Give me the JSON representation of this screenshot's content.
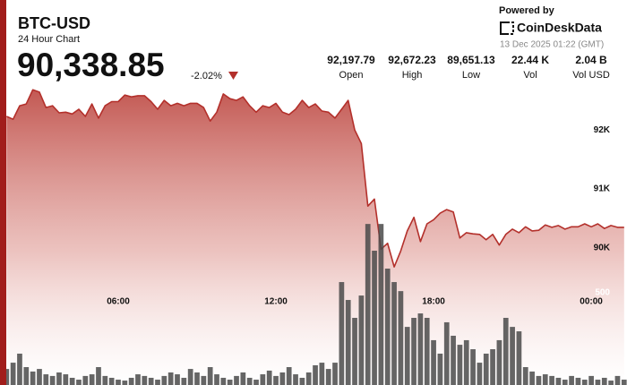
{
  "header": {
    "title": "BTC-USD",
    "subtitle": "24 Hour Chart",
    "price": "90,338.85",
    "change": "-2.02%"
  },
  "stats": [
    {
      "value": "92,197.79",
      "label": "Open"
    },
    {
      "value": "92,672.23",
      "label": "High"
    },
    {
      "value": "89,651.13",
      "label": "Low"
    },
    {
      "value": "22.44 K",
      "label": "Vol"
    },
    {
      "value": "2.04 B",
      "label": "Vol USD"
    }
  ],
  "branding": {
    "powered_by": "Powered by",
    "brand": "CoinDeskData",
    "timestamp": "13 Dec 2025 01:22 (GMT)"
  },
  "chart_data": {
    "type": "line",
    "x": [
      1.75,
      2,
      2.25,
      2.5,
      2.75,
      3,
      3.25,
      3.5,
      3.75,
      4,
      4.25,
      4.5,
      4.75,
      5,
      5.25,
      5.5,
      5.75,
      6,
      6.25,
      6.5,
      6.75,
      7,
      7.25,
      7.5,
      7.75,
      8,
      8.25,
      8.5,
      8.75,
      9,
      9.25,
      9.5,
      9.75,
      10,
      10.25,
      10.5,
      10.75,
      11,
      11.25,
      11.5,
      11.75,
      12,
      12.25,
      12.5,
      12.75,
      13,
      13.25,
      13.5,
      13.75,
      14,
      14.25,
      14.5,
      14.75,
      15,
      15.25,
      15.5,
      15.75,
      16,
      16.25,
      16.5,
      16.75,
      17,
      17.25,
      17.5,
      17.75,
      18,
      18.25,
      18.5,
      18.75,
      19,
      19.25,
      19.5,
      19.75,
      20,
      20.25,
      20.5,
      20.75,
      21,
      21.25,
      21.5,
      21.75,
      22,
      22.25,
      22.5,
      22.75,
      23,
      23.25,
      23.5,
      23.75,
      24,
      24.25,
      24.5,
      24.75,
      25,
      25.25
    ],
    "series": [
      {
        "color": "#b3302b",
        "values": [
          92230,
          92180,
          92410,
          92440,
          92680,
          92640,
          92380,
          92410,
          92290,
          92300,
          92270,
          92350,
          92230,
          92440,
          92200,
          92410,
          92480,
          92480,
          92590,
          92560,
          92580,
          92580,
          92480,
          92350,
          92500,
          92410,
          92450,
          92410,
          92450,
          92450,
          92380,
          92150,
          92300,
          92610,
          92530,
          92500,
          92560,
          92410,
          92300,
          92410,
          92380,
          92450,
          92300,
          92260,
          92350,
          92500,
          92380,
          92440,
          92320,
          92300,
          92200,
          92350,
          92500,
          92000,
          91770,
          90710,
          90830,
          89980,
          90080,
          89680,
          89950,
          90290,
          90520,
          90110,
          90410,
          90480,
          90590,
          90650,
          90610,
          90170,
          90260,
          90240,
          90230,
          90140,
          90230,
          90050,
          90230,
          90320,
          90260,
          90360,
          90290,
          90300,
          90390,
          90350,
          90380,
          90320,
          90360,
          90360,
          90410,
          90360,
          90410,
          90330,
          90380,
          90350,
          90350
        ]
      },
      {
        "type": "bar",
        "axis": "y2",
        "color": "#4a4a4a",
        "values": [
          87,
          121,
          170,
          97,
          73,
          87,
          58,
          49,
          68,
          58,
          39,
          29,
          49,
          58,
          97,
          49,
          39,
          29,
          24,
          39,
          58,
          49,
          39,
          29,
          49,
          68,
          58,
          39,
          87,
          68,
          49,
          97,
          58,
          39,
          29,
          49,
          68,
          39,
          29,
          58,
          78,
          49,
          68,
          97,
          58,
          39,
          68,
          107,
          121,
          87,
          121,
          558,
          461,
          364,
          485,
          873,
          728,
          873,
          631,
          558,
          509,
          315,
          364,
          388,
          364,
          243,
          170,
          340,
          267,
          218,
          243,
          194,
          121,
          170,
          194,
          243,
          364,
          315,
          291,
          97,
          73,
          49,
          58,
          49,
          39,
          29,
          49,
          39,
          29,
          49,
          29,
          39,
          24,
          49,
          29
        ]
      }
    ],
    "xlim": [
      1.74,
      25.36
    ],
    "xticks": [
      {
        "value": 6,
        "label": "06:00"
      },
      {
        "value": 12,
        "label": "12:00"
      },
      {
        "value": 18,
        "label": "18:00"
      },
      {
        "value": 24,
        "label": "00:00"
      }
    ],
    "ylim": [
      87680,
      92760
    ],
    "yticks": [
      {
        "value": 90000,
        "label": "90K"
      },
      {
        "value": 91000,
        "label": "91K"
      },
      {
        "value": 92000,
        "label": "92K"
      }
    ],
    "y2lim": [
      0,
      1626
    ],
    "y2ticks": [
      500
    ]
  }
}
